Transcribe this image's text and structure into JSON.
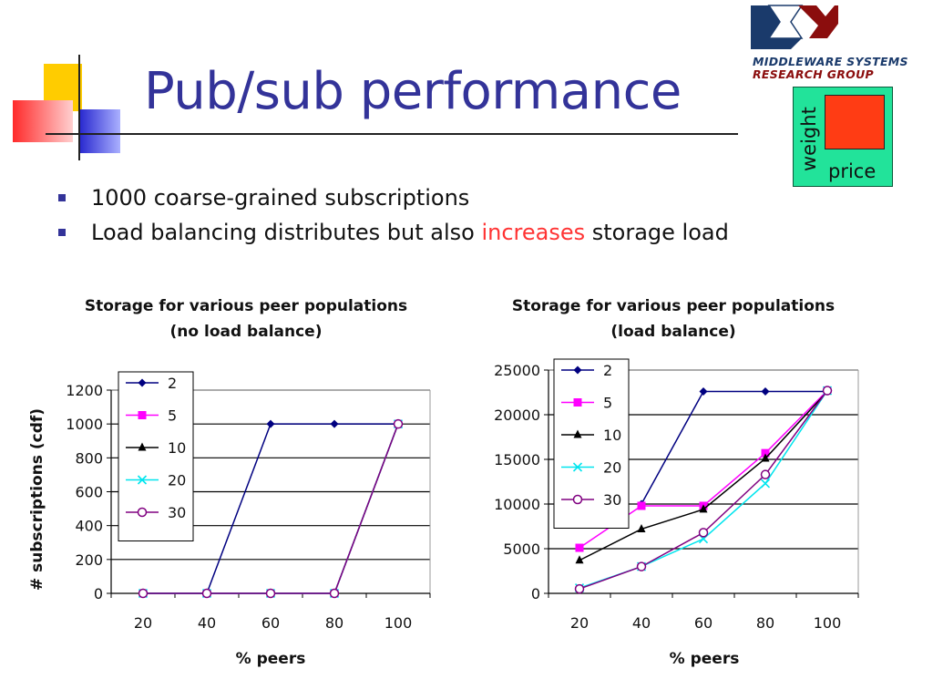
{
  "slide": {
    "title": "Pub/sub performance",
    "bullets": [
      {
        "text_before": "1000 coarse-grained subscriptions",
        "highlight": "",
        "text_after": ""
      },
      {
        "text_before": "Load balancing distributes but also ",
        "highlight": "increases",
        "text_after": " storage load"
      }
    ],
    "logo": {
      "line1": "MIDDLEWARE SYSTEMS",
      "line2": "RESEARCH GROUP"
    },
    "weight_price": {
      "weight_label": "weight",
      "price_label": "price"
    },
    "colors": {
      "title": "#333399",
      "highlight": "#ff3333",
      "bullet": "#333399"
    }
  },
  "chart_data": [
    {
      "type": "line",
      "title": "Storage for various peer populations",
      "subtitle": "(no load balance)",
      "xlabel": "% peers",
      "ylabel": "# subscriptions (cdf)",
      "categories": [
        "20",
        "40",
        "60",
        "80",
        "100"
      ],
      "ylim": [
        0,
        1200
      ],
      "yticks": [
        0,
        200,
        400,
        600,
        800,
        1000,
        1200
      ],
      "grid": true,
      "legend_position": "top-left",
      "series": [
        {
          "name": "2",
          "values": [
            0,
            0,
            1000,
            1000,
            1000
          ],
          "color": "#000080",
          "marker": "diamond"
        },
        {
          "name": "5",
          "values": [
            0,
            0,
            0,
            0,
            1000
          ],
          "color": "#ff00ff",
          "marker": "square"
        },
        {
          "name": "10",
          "values": [
            0,
            0,
            0,
            0,
            1000
          ],
          "color": "#000000",
          "marker": "triangle"
        },
        {
          "name": "20",
          "values": [
            0,
            0,
            0,
            0,
            1000
          ],
          "color": "#00e5ee",
          "marker": "x"
        },
        {
          "name": "30",
          "values": [
            0,
            0,
            0,
            0,
            1000
          ],
          "color": "#800080",
          "marker": "circle"
        }
      ]
    },
    {
      "type": "line",
      "title": "Storage for various peer populations",
      "subtitle": "(load balance)",
      "xlabel": "% peers",
      "ylabel": "",
      "categories": [
        "20",
        "40",
        "60",
        "80",
        "100"
      ],
      "ylim": [
        0,
        25000
      ],
      "yticks": [
        0,
        5000,
        10000,
        15000,
        20000,
        25000
      ],
      "grid": true,
      "legend_position": "top-left",
      "series": [
        {
          "name": "2",
          "values": [
            null,
            10000,
            22600,
            22600,
            22600
          ],
          "color": "#000080",
          "marker": "diamond"
        },
        {
          "name": "5",
          "values": [
            5100,
            9800,
            9800,
            15700,
            22700
          ],
          "color": "#ff00ff",
          "marker": "square"
        },
        {
          "name": "10",
          "values": [
            3700,
            7200,
            9400,
            15100,
            22600
          ],
          "color": "#000000",
          "marker": "triangle"
        },
        {
          "name": "20",
          "values": [
            600,
            3000,
            6100,
            12300,
            22700
          ],
          "color": "#00e5ee",
          "marker": "x"
        },
        {
          "name": "30",
          "values": [
            500,
            3000,
            6800,
            13300,
            22700
          ],
          "color": "#800080",
          "marker": "circle"
        }
      ]
    }
  ]
}
